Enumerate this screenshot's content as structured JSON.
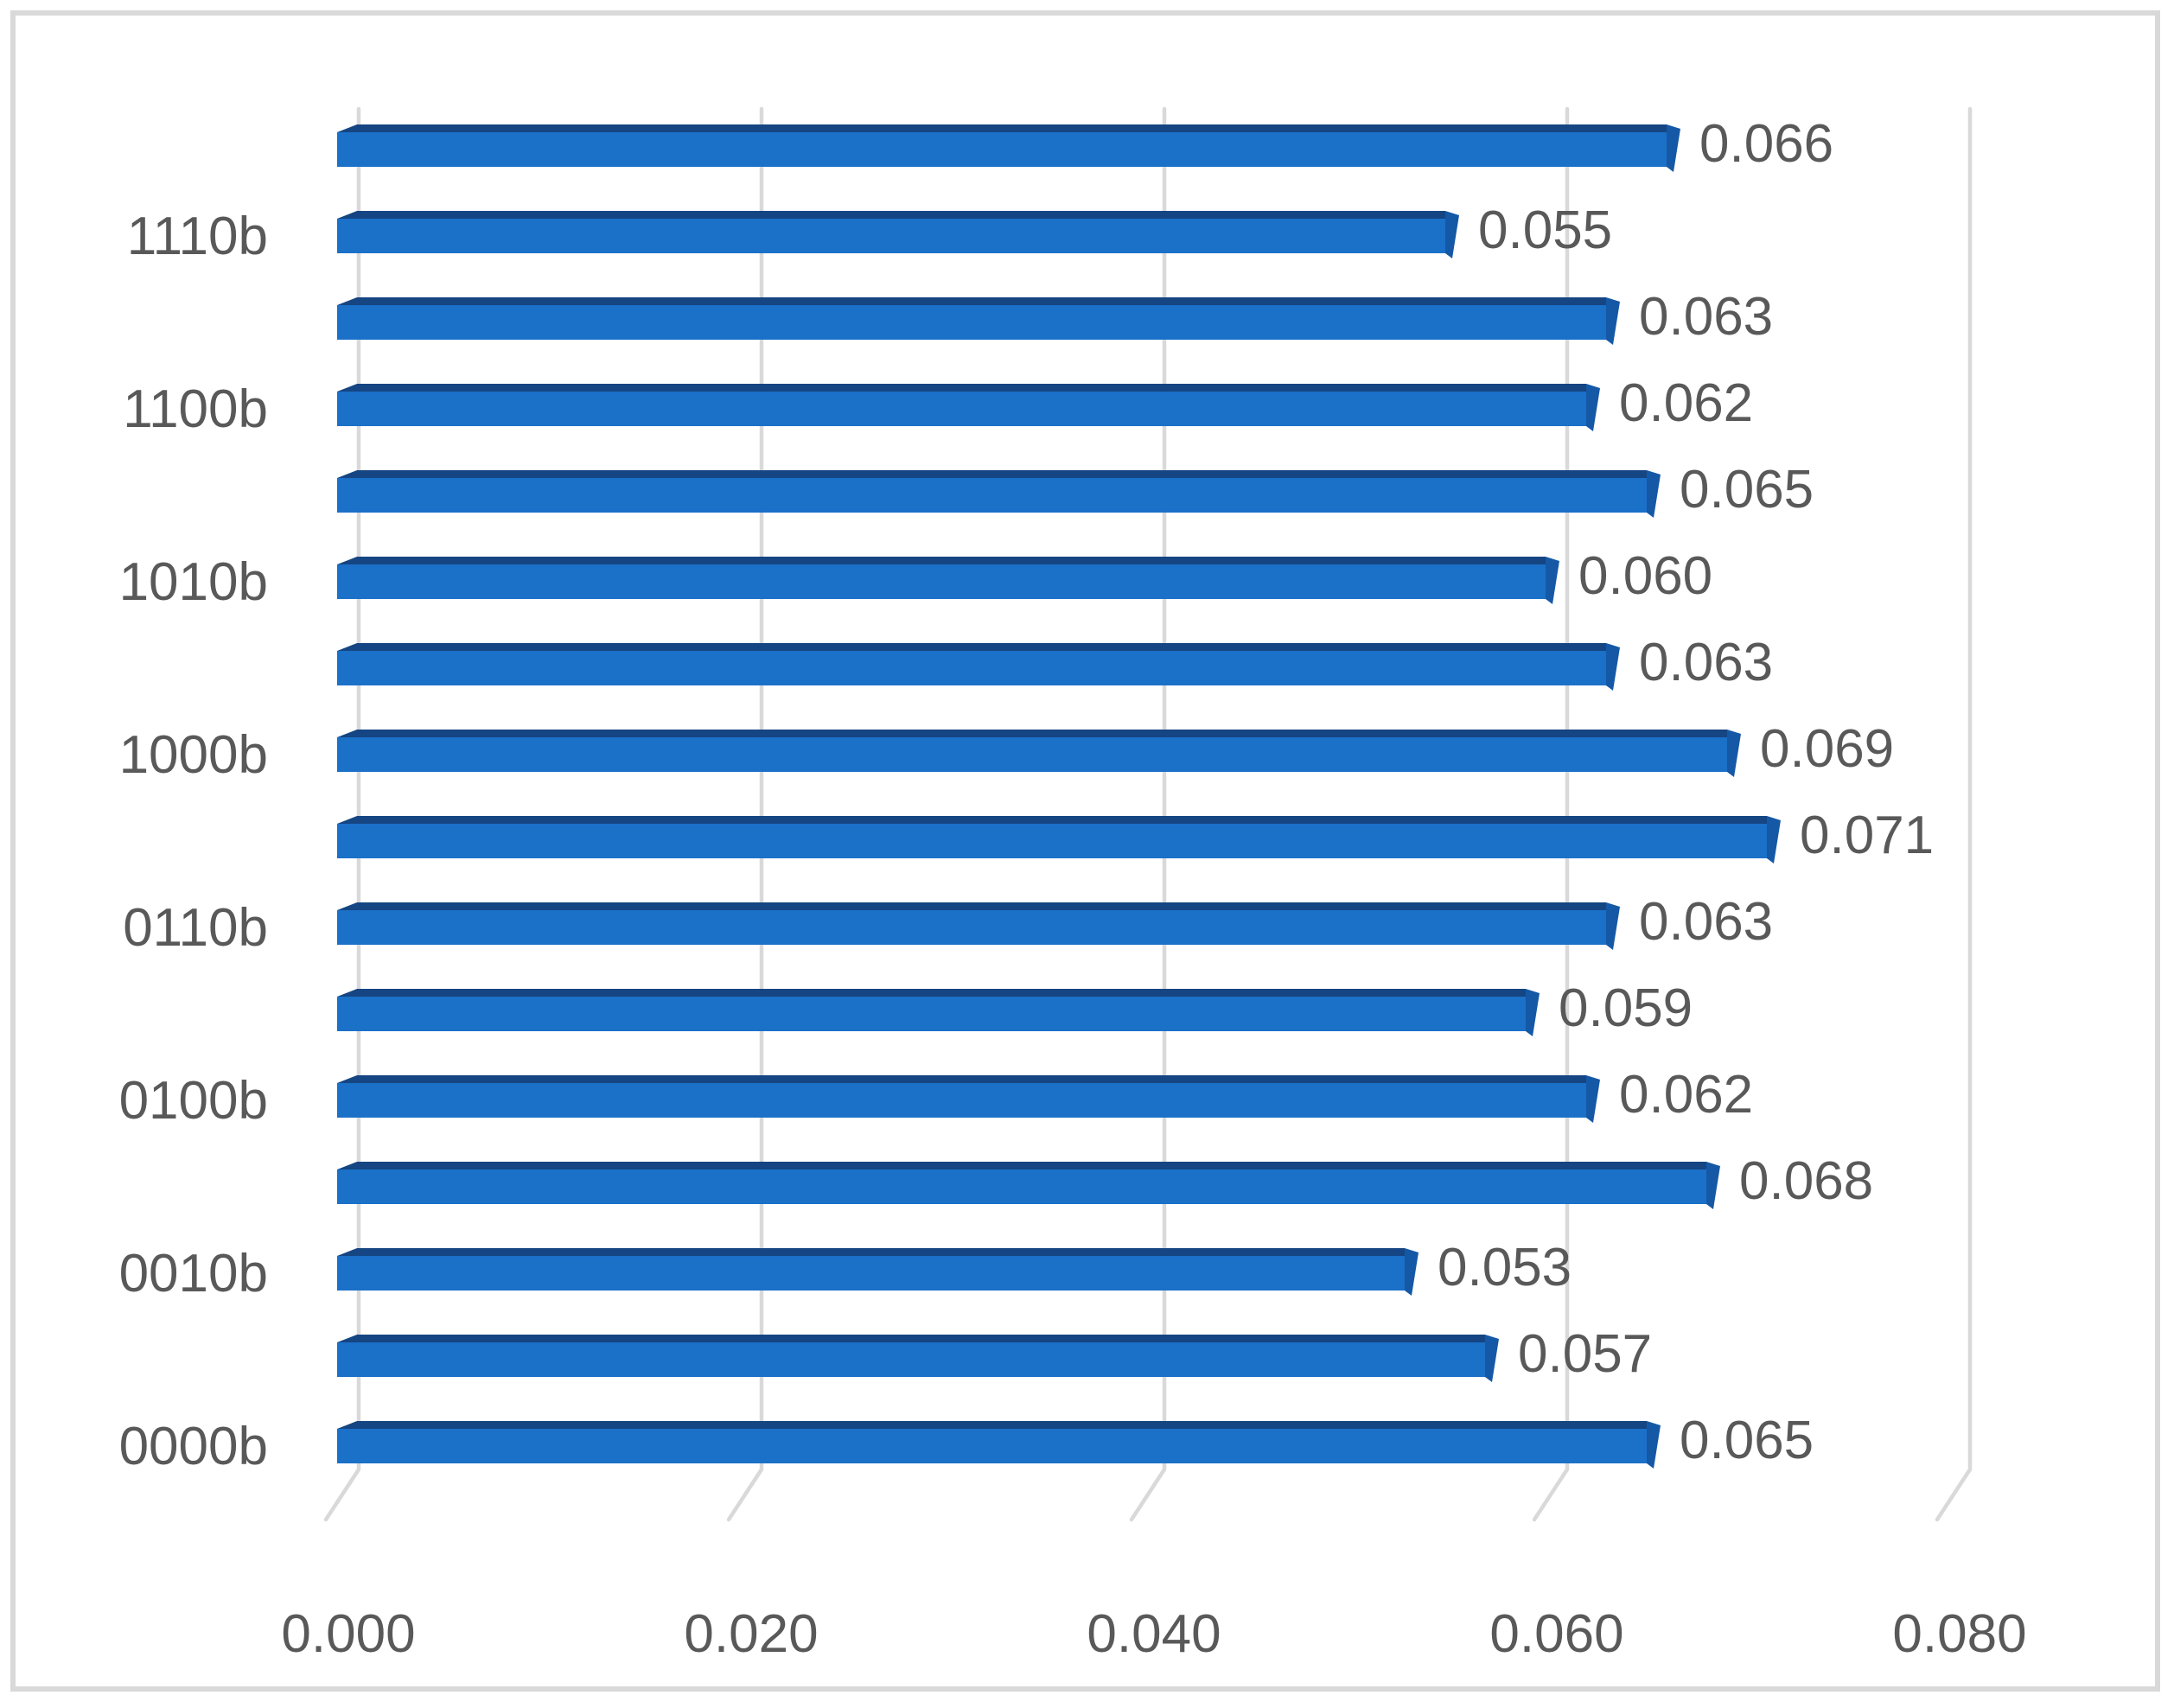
{
  "chart_data": {
    "type": "bar",
    "orientation": "horizontal",
    "title": "",
    "xlabel": "",
    "ylabel": "",
    "xlim": [
      0,
      0.08
    ],
    "grid": true,
    "style": "3d-horizontal-bar",
    "rows": [
      {
        "category_label": "",
        "value": 0.066,
        "value_label": "0.066"
      },
      {
        "category_label": "1110b",
        "value": 0.055,
        "value_label": "0.055"
      },
      {
        "category_label": "",
        "value": 0.063,
        "value_label": "0.063"
      },
      {
        "category_label": "1100b",
        "value": 0.062,
        "value_label": "0.062"
      },
      {
        "category_label": "",
        "value": 0.065,
        "value_label": "0.065"
      },
      {
        "category_label": "1010b",
        "value": 0.06,
        "value_label": "0.060"
      },
      {
        "category_label": "",
        "value": 0.063,
        "value_label": "0.063"
      },
      {
        "category_label": "1000b",
        "value": 0.069,
        "value_label": "0.069"
      },
      {
        "category_label": "",
        "value": 0.071,
        "value_label": "0.071"
      },
      {
        "category_label": "0110b",
        "value": 0.063,
        "value_label": "0.063"
      },
      {
        "category_label": "",
        "value": 0.059,
        "value_label": "0.059"
      },
      {
        "category_label": "0100b",
        "value": 0.062,
        "value_label": "0.062"
      },
      {
        "category_label": "",
        "value": 0.068,
        "value_label": "0.068"
      },
      {
        "category_label": "0010b",
        "value": 0.053,
        "value_label": "0.053"
      },
      {
        "category_label": "",
        "value": 0.057,
        "value_label": "0.057"
      },
      {
        "category_label": "0000b",
        "value": 0.065,
        "value_label": "0.065"
      }
    ],
    "x_ticks": [
      {
        "label": "0.000",
        "value": 0.0
      },
      {
        "label": "0.020",
        "value": 0.02
      },
      {
        "label": "0.040",
        "value": 0.04
      },
      {
        "label": "0.060",
        "value": 0.06
      },
      {
        "label": "0.080",
        "value": 0.08
      }
    ],
    "colors": {
      "bar_front": "#1B70C8",
      "bar_top": "#154582",
      "bar_end_cap": "#1558A6",
      "gridline": "#D9D9D9",
      "text": "#595959",
      "border": "#D9D9D9",
      "background": "#FFFFFF"
    }
  }
}
